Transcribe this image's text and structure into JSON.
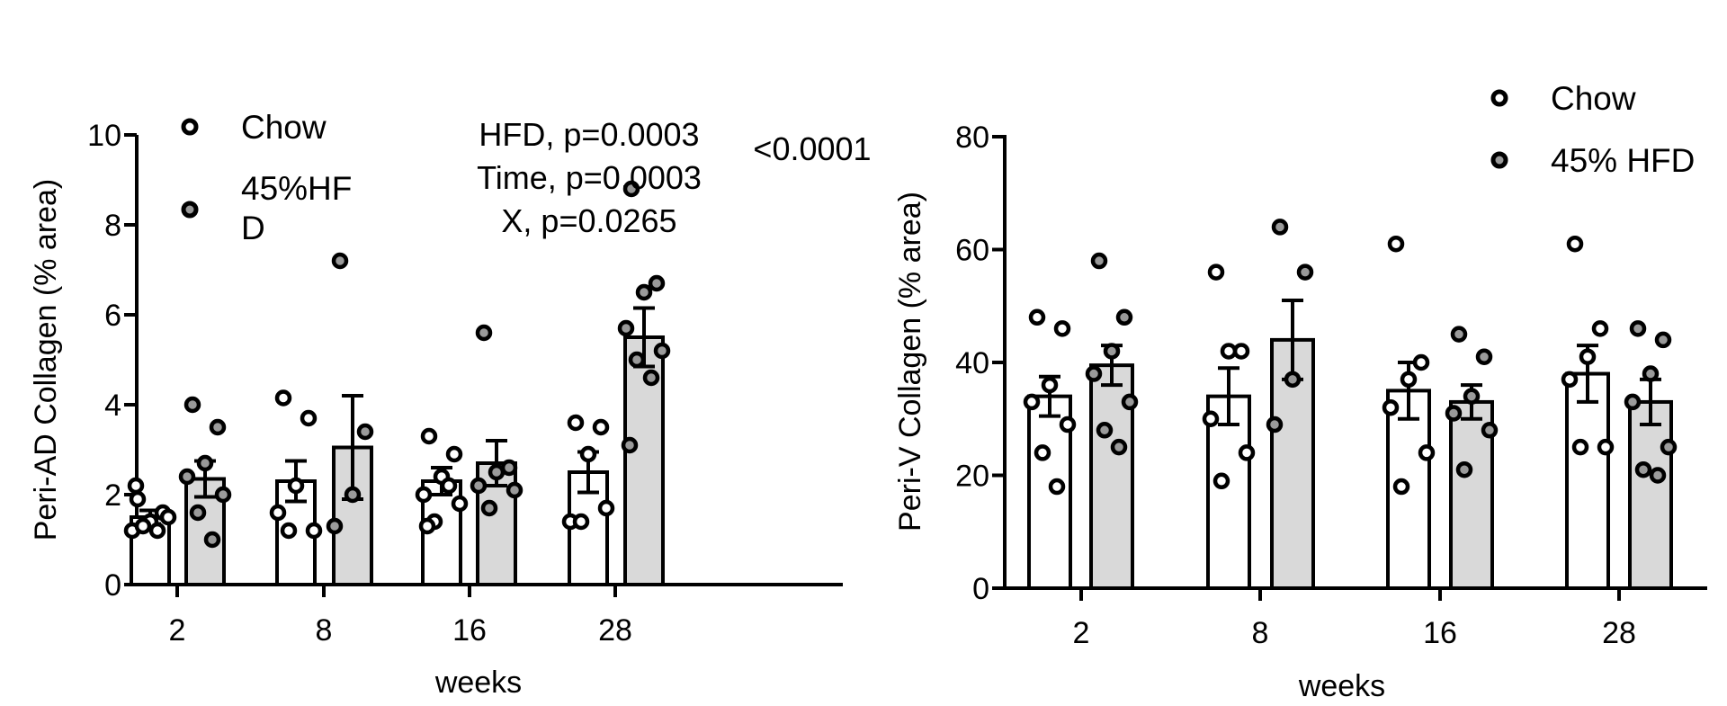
{
  "chart_data": [
    {
      "type": "bar",
      "ylabel": "Peri-AD Collagen (% area)",
      "xlabel": "weeks",
      "categories": [
        "2",
        "8",
        "16",
        "28"
      ],
      "ylim": [
        0,
        10
      ],
      "yticks": [
        0,
        2,
        4,
        6,
        8,
        10
      ],
      "legend": {
        "position": "top-left",
        "entries": [
          "Chow",
          "45%HF\nD"
        ]
      },
      "annotations": {
        "stats": [
          "HFD, p=0.0003",
          "Time, p=0.0003",
          "X, p=0.0265"
        ],
        "posthoc": "<0.0001"
      },
      "series": [
        {
          "name": "Chow",
          "values": [
            1.5,
            2.3,
            2.3,
            2.5
          ],
          "sem": [
            0.15,
            0.45,
            0.3,
            0.45
          ],
          "points": [
            [
              1.9,
              1.6,
              1.4,
              1.2,
              1.5,
              1.3,
              1.2,
              2.2
            ],
            [
              4.15,
              3.7,
              2.2,
              1.6,
              1.2,
              1.2
            ],
            [
              3.3,
              2.9,
              2.4,
              2.0,
              1.8,
              1.4,
              2.2,
              1.3
            ],
            [
              3.6,
              3.5,
              2.9,
              1.4,
              1.7,
              1.4
            ]
          ]
        },
        {
          "name": "45%HF\nD",
          "values": [
            2.35,
            3.05,
            2.7,
            5.5
          ],
          "sem": [
            0.4,
            1.15,
            0.5,
            0.65
          ],
          "points": [
            [
              4.0,
              3.5,
              2.7,
              2.4,
              2.0,
              1.6,
              1.0
            ],
            [
              7.2,
              3.4,
              2.0,
              1.3
            ],
            [
              5.6,
              2.6,
              2.5,
              2.2,
              2.1,
              1.7
            ],
            [
              8.8,
              6.7,
              6.5,
              5.7,
              5.2,
              5.0,
              4.6,
              3.1
            ]
          ]
        }
      ]
    },
    {
      "type": "bar",
      "ylabel": "Peri-V Collagen (% area)",
      "xlabel": "weeks",
      "categories": [
        "2",
        "8",
        "16",
        "28"
      ],
      "ylim": [
        0,
        80
      ],
      "yticks": [
        0,
        20,
        40,
        60,
        80
      ],
      "legend": {
        "position": "top-right",
        "entries": [
          "Chow",
          "45% HFD"
        ]
      },
      "series": [
        {
          "name": "Chow",
          "values": [
            34,
            34,
            35,
            38
          ],
          "sem": [
            3.5,
            5,
            5,
            5
          ],
          "points": [
            [
              48,
              46,
              36,
              33,
              29,
              24,
              18
            ],
            [
              56,
              42,
              42,
              30,
              24,
              19
            ],
            [
              61,
              40,
              37,
              32,
              24,
              18
            ],
            [
              61,
              46,
              41,
              37,
              25,
              25
            ]
          ]
        },
        {
          "name": "45% HFD",
          "values": [
            39.5,
            44,
            33,
            33
          ],
          "sem": [
            3.5,
            7,
            3,
            4
          ],
          "points": [
            [
              58,
              48,
              42,
              38,
              33,
              28,
              25
            ],
            [
              64,
              56,
              37,
              29
            ],
            [
              45,
              41,
              34,
              31,
              28,
              21
            ],
            [
              46,
              44,
              38,
              33,
              25,
              21,
              20
            ]
          ]
        }
      ]
    }
  ]
}
